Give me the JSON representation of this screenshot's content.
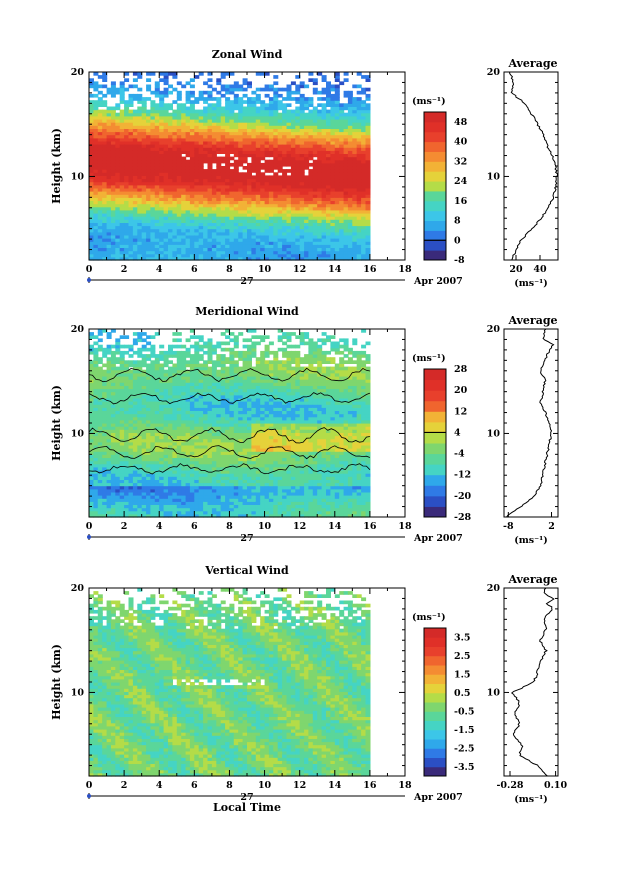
{
  "chart_data": [
    {
      "type": "heatmap",
      "title": "Zonal Wind",
      "ylabel": "Height (km)",
      "x_ticks": [
        "0",
        "2",
        "4",
        "6",
        "8",
        "10",
        "12",
        "14",
        "16",
        "18"
      ],
      "y_ticks": [
        "10",
        "20"
      ],
      "xlim": [
        0,
        18
      ],
      "ylim": [
        2,
        20
      ],
      "data_x_range": [
        0,
        16
      ],
      "date_tick": "27",
      "date_label": "Apr 2007",
      "colorbar": {
        "units": "(ms⁻¹)",
        "levels": [
          -8,
          -4,
          0,
          4,
          8,
          12,
          16,
          20,
          24,
          28,
          32,
          36,
          40,
          44,
          48,
          52
        ],
        "labels": [
          "-8",
          "0",
          "8",
          "16",
          "24",
          "32",
          "40",
          "48"
        ]
      },
      "profile": {
        "title": "Average",
        "xlabel": "(ms⁻¹)",
        "x_ticks": [
          "20",
          "40"
        ],
        "xlim": [
          10,
          55
        ],
        "y_ticks": [
          "10",
          "20"
        ],
        "heights": [
          2.0,
          2.5,
          3.0,
          4.0,
          5.0,
          6.0,
          7.0,
          8.0,
          9.0,
          10.0,
          11.0,
          12.0,
          13.0,
          14.0,
          15.0,
          16.0,
          17.0,
          17.5,
          18.0,
          19.0,
          20.0
        ],
        "values": [
          16,
          18,
          20,
          25,
          33,
          41,
          47,
          51,
          53,
          54,
          53,
          50,
          46,
          43,
          38,
          33,
          27,
          22,
          16,
          18,
          15
        ]
      }
    },
    {
      "type": "heatmap",
      "title": "Meridional Wind",
      "ylabel": "Height (km)",
      "x_ticks": [
        "0",
        "2",
        "4",
        "6",
        "8",
        "10",
        "12",
        "14",
        "16",
        "18"
      ],
      "y_ticks": [
        "10",
        "20"
      ],
      "xlim": [
        0,
        18
      ],
      "ylim": [
        2,
        20
      ],
      "data_x_range": [
        0,
        16
      ],
      "date_tick": "27",
      "date_label": "Apr 2007",
      "colorbar": {
        "units": "(ms⁻¹)",
        "levels": [
          -28,
          -24,
          -20,
          -16,
          -12,
          -8,
          -4,
          0,
          4,
          8,
          12,
          16,
          20,
          24,
          28
        ],
        "labels": [
          "-28",
          "-20",
          "-12",
          "-4",
          "4",
          "12",
          "20",
          "28"
        ]
      },
      "profile": {
        "title": "Average",
        "xlabel": "(ms⁻¹)",
        "x_ticks": [
          "-8",
          "2"
        ],
        "xlim": [
          -9,
          3.5
        ],
        "y_ticks": [
          "10",
          "20"
        ],
        "heights": [
          2.0,
          2.5,
          3.0,
          4.0,
          5.0,
          6.0,
          7.0,
          8.0,
          9.0,
          10.0,
          11.0,
          12.0,
          13.0,
          14.0,
          15.0,
          16.0,
          17.0,
          18.0,
          18.5,
          19.0,
          20.0
        ],
        "values": [
          -8.5,
          -7.0,
          -5.0,
          -2.0,
          -0.5,
          0.0,
          0.5,
          1.0,
          1.5,
          2.0,
          1.5,
          0.5,
          -0.5,
          0.0,
          0.5,
          -0.5,
          0.5,
          1.5,
          2.5,
          0.0,
          0.5
        ]
      }
    },
    {
      "type": "heatmap",
      "title": "Vertical Wind",
      "ylabel": "Height (km)",
      "xlabel": "Local Time",
      "x_ticks": [
        "0",
        "2",
        "4",
        "6",
        "8",
        "10",
        "12",
        "14",
        "16",
        "18"
      ],
      "y_ticks": [
        "10",
        "20"
      ],
      "xlim": [
        0,
        18
      ],
      "ylim": [
        2,
        20
      ],
      "data_x_range": [
        0,
        16
      ],
      "date_tick": "27",
      "date_label": "Apr 2007",
      "colorbar": {
        "units": "(ms⁻¹)",
        "levels": [
          -4.0,
          -3.5,
          -3.0,
          -2.5,
          -2.0,
          -1.5,
          -1.0,
          -0.5,
          0.0,
          0.5,
          1.0,
          1.5,
          2.0,
          2.5,
          3.0,
          3.5,
          4.0
        ],
        "labels": [
          "-3.5",
          "-2.5",
          "-1.5",
          "-0.5",
          "0.5",
          "1.5",
          "2.5",
          "3.5"
        ]
      },
      "profile": {
        "title": "Average",
        "xlabel": "(ms⁻¹)",
        "x_ticks": [
          "-0.28",
          "0.10"
        ],
        "xlim": [
          -0.33,
          0.12
        ],
        "y_ticks": [
          "10",
          "20"
        ],
        "heights": [
          2.0,
          3.0,
          4.0,
          5.0,
          6.0,
          7.0,
          8.0,
          9.0,
          10.0,
          11.0,
          12.0,
          13.0,
          14.0,
          15.0,
          16.0,
          17.0,
          18.0,
          18.5,
          19.0,
          19.5,
          20.0
        ],
        "values": [
          0.03,
          -0.05,
          -0.2,
          -0.18,
          -0.26,
          -0.2,
          -0.24,
          -0.2,
          -0.26,
          -0.08,
          -0.05,
          -0.02,
          0.02,
          -0.03,
          0.02,
          0.0,
          0.08,
          0.03,
          0.09,
          0.0,
          0.02
        ]
      }
    }
  ]
}
